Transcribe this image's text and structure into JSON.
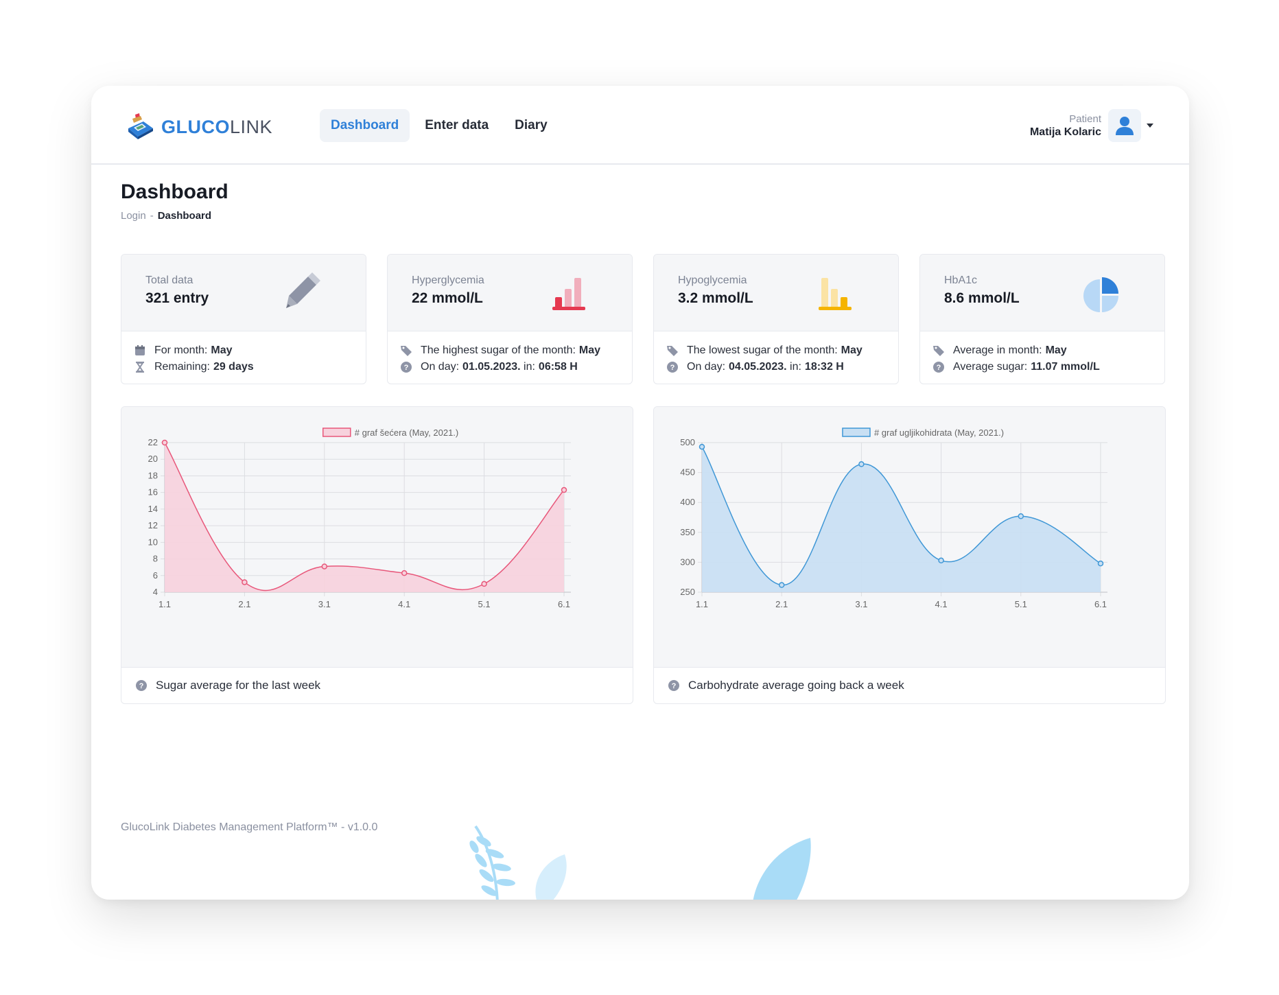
{
  "app": {
    "logo_bold": "GLUCO",
    "logo_light": "LINK",
    "accent_color": "#2f80d8"
  },
  "nav": {
    "items": [
      {
        "label": "Dashboard",
        "active": true
      },
      {
        "label": "Enter data",
        "active": false
      },
      {
        "label": "Diary",
        "active": false
      }
    ]
  },
  "user": {
    "role": "Patient",
    "name": "Matija Kolaric",
    "avatar_icon": "user-icon"
  },
  "page": {
    "title": "Dashboard",
    "breadcrumb": [
      "Login",
      "Dashboard"
    ]
  },
  "stats": [
    {
      "label": "Total data",
      "value": "321 entry",
      "icon": "pencil-icon",
      "lines": [
        {
          "icon": "calendar-icon",
          "text": "For month:",
          "strong": "May"
        },
        {
          "icon": "hourglass-icon",
          "text": "Remaining:",
          "strong": "29 days"
        }
      ]
    },
    {
      "label": "Hyperglycemia",
      "value": "22 mmol/L",
      "icon": "bar-chart-icon",
      "lines": [
        {
          "icon": "tag-icon",
          "text": "The highest sugar of the month:",
          "strong": "May"
        },
        {
          "icon": "question-icon",
          "text": "On day:",
          "strong": "01.05.2023.",
          "text2": "in:",
          "strong2": "06:58 H"
        }
      ]
    },
    {
      "label": "Hypoglycemia",
      "value": "3.2 mmol/L",
      "icon": "bar-chart-icon",
      "lines": [
        {
          "icon": "tag-icon",
          "text": "The lowest sugar of the month:",
          "strong": "May"
        },
        {
          "icon": "question-icon",
          "text": "On day:",
          "strong": "04.05.2023.",
          "text2": "in:",
          "strong2": "18:32 H"
        }
      ]
    },
    {
      "label": "HbA1c",
      "value": "8.6 mmol/L",
      "icon": "pie-chart-icon",
      "lines": [
        {
          "icon": "tag-icon",
          "text": "Average in month:",
          "strong": "May"
        },
        {
          "icon": "question-icon",
          "text": "Average sugar:",
          "strong": "11.07 mmol/L"
        }
      ]
    }
  ],
  "charts": [
    {
      "footer": "Sugar average for the last week"
    },
    {
      "footer": "Carbohydrate average going back a week"
    }
  ],
  "chart_data": [
    {
      "type": "area",
      "title": "",
      "categories": [
        "1.1",
        "2.1",
        "3.1",
        "4.1",
        "5.1",
        "6.1"
      ],
      "series": [
        {
          "name": "# graf šećera (May, 2021.)",
          "values": [
            22,
            5.2,
            7.1,
            6.3,
            5,
            16.3
          ],
          "color": "#e8577a",
          "fill": "#f7d2dd"
        }
      ],
      "yticks": [
        4,
        6,
        8,
        10,
        12,
        14,
        16,
        18,
        20,
        22
      ],
      "ylim": [
        4,
        22
      ],
      "grid": true,
      "legend": "top"
    },
    {
      "type": "area",
      "title": "",
      "categories": [
        "1.1",
        "2.1",
        "3.1",
        "4.1",
        "5.1",
        "6.1"
      ],
      "series": [
        {
          "name": "# graf ugljikohidrata (May, 2021.)",
          "values": [
            493,
            262,
            464,
            303,
            377,
            298
          ],
          "color": "#3f97d6",
          "fill": "#c8dff3"
        }
      ],
      "yticks": [
        250,
        300,
        350,
        400,
        450,
        500
      ],
      "ylim": [
        250,
        500
      ],
      "grid": true,
      "legend": "top"
    }
  ],
  "footer": {
    "text": "GlucoLink Diabetes Management Platform™ - v1.0.0"
  }
}
